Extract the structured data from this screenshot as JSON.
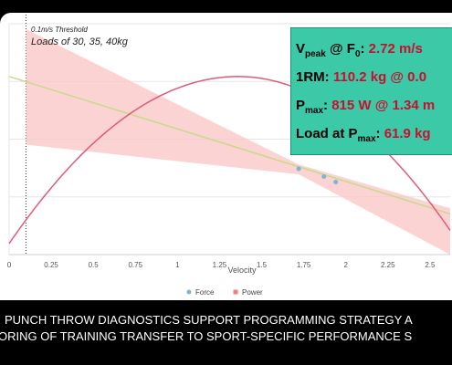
{
  "chart_data": {
    "type": "scatter",
    "xlabel": "Velocity",
    "ylabel": "",
    "xlim": [
      0,
      2.62
    ],
    "x_ticks": [
      "0",
      "0.25",
      "0.5",
      "0.75",
      "1",
      "1.25",
      "1.5",
      "1.75",
      "2",
      "2.25",
      "2.5"
    ],
    "grid": true,
    "legend_position": "bottom",
    "series": [
      {
        "name": "Force",
        "color": "#7fb3d8",
        "marker": "circle",
        "points": [
          {
            "x": 1.72,
            "y": 0.78
          },
          {
            "x": 1.87,
            "y": 0.71
          },
          {
            "x": 1.94,
            "y": 0.66
          }
        ]
      },
      {
        "name": "Power",
        "color": "#f08080",
        "marker": "square",
        "points": [
          {
            "x": 1.72,
            "y": 1.52
          },
          {
            "x": 1.87,
            "y": 1.48
          },
          {
            "x": 1.94,
            "y": 1.47
          }
        ]
      }
    ],
    "fit_lines": [
      {
        "kind": "linear",
        "color": "#c8d98a",
        "from": {
          "x": 0,
          "y": 1.62
        },
        "to": {
          "x": 2.62,
          "y": 0.37
        }
      },
      {
        "kind": "parabolic",
        "color": "#e05a7a",
        "from": {
          "x": 0,
          "y": 0.1
        },
        "vertex": {
          "x": 1.36,
          "y": 1.62
        },
        "to": {
          "x": 2.62,
          "y": 0.22
        }
      }
    ],
    "confidence_band": {
      "color": "#f9c4c4",
      "upper": [
        {
          "x": 0.1,
          "y": 2.05
        },
        {
          "x": 1.72,
          "y": 0.82
        },
        {
          "x": 2.62,
          "y": 0.42
        }
      ],
      "lower": [
        {
          "x": 0.1,
          "y": 1.0
        },
        {
          "x": 1.72,
          "y": 0.73
        },
        {
          "x": 2.62,
          "y": 0.0
        }
      ]
    },
    "threshold_line": {
      "x": 0.1,
      "style": "dotted",
      "label": "0.1m/s Threshold",
      "sublabel": "Loads of 30, 35, 40kg"
    }
  },
  "stats": {
    "vpeak": {
      "label_main": "V",
      "label_sub1": "peak",
      "label_mid": " @ F",
      "label_sub2": "0",
      "label_end": ": ",
      "value": "2.72 m/s"
    },
    "onerm": {
      "label": "1RM: ",
      "value": "110.2 kg @ 0.0"
    },
    "pmax": {
      "label_main": "P",
      "label_sub": "max",
      "label_end": ": ",
      "value": "815 W @ 1.34 m"
    },
    "load": {
      "label_main": "Load at P",
      "label_sub": "max",
      "label_end": ": ",
      "value": "61.9 kg"
    }
  },
  "caption": {
    "line1": "PUNCH THROW DIAGNOSTICS SUPPORT PROGRAMMING STRATEGY A",
    "line2": "ORING OF TRAINING TRANSFER TO SPORT-SPECIFIC PERFORMANCE S"
  },
  "colors": {
    "panel": "#ffffff",
    "background": "#000000",
    "stats_box": "#3cc9a8",
    "stat_value": "#c8102e"
  }
}
